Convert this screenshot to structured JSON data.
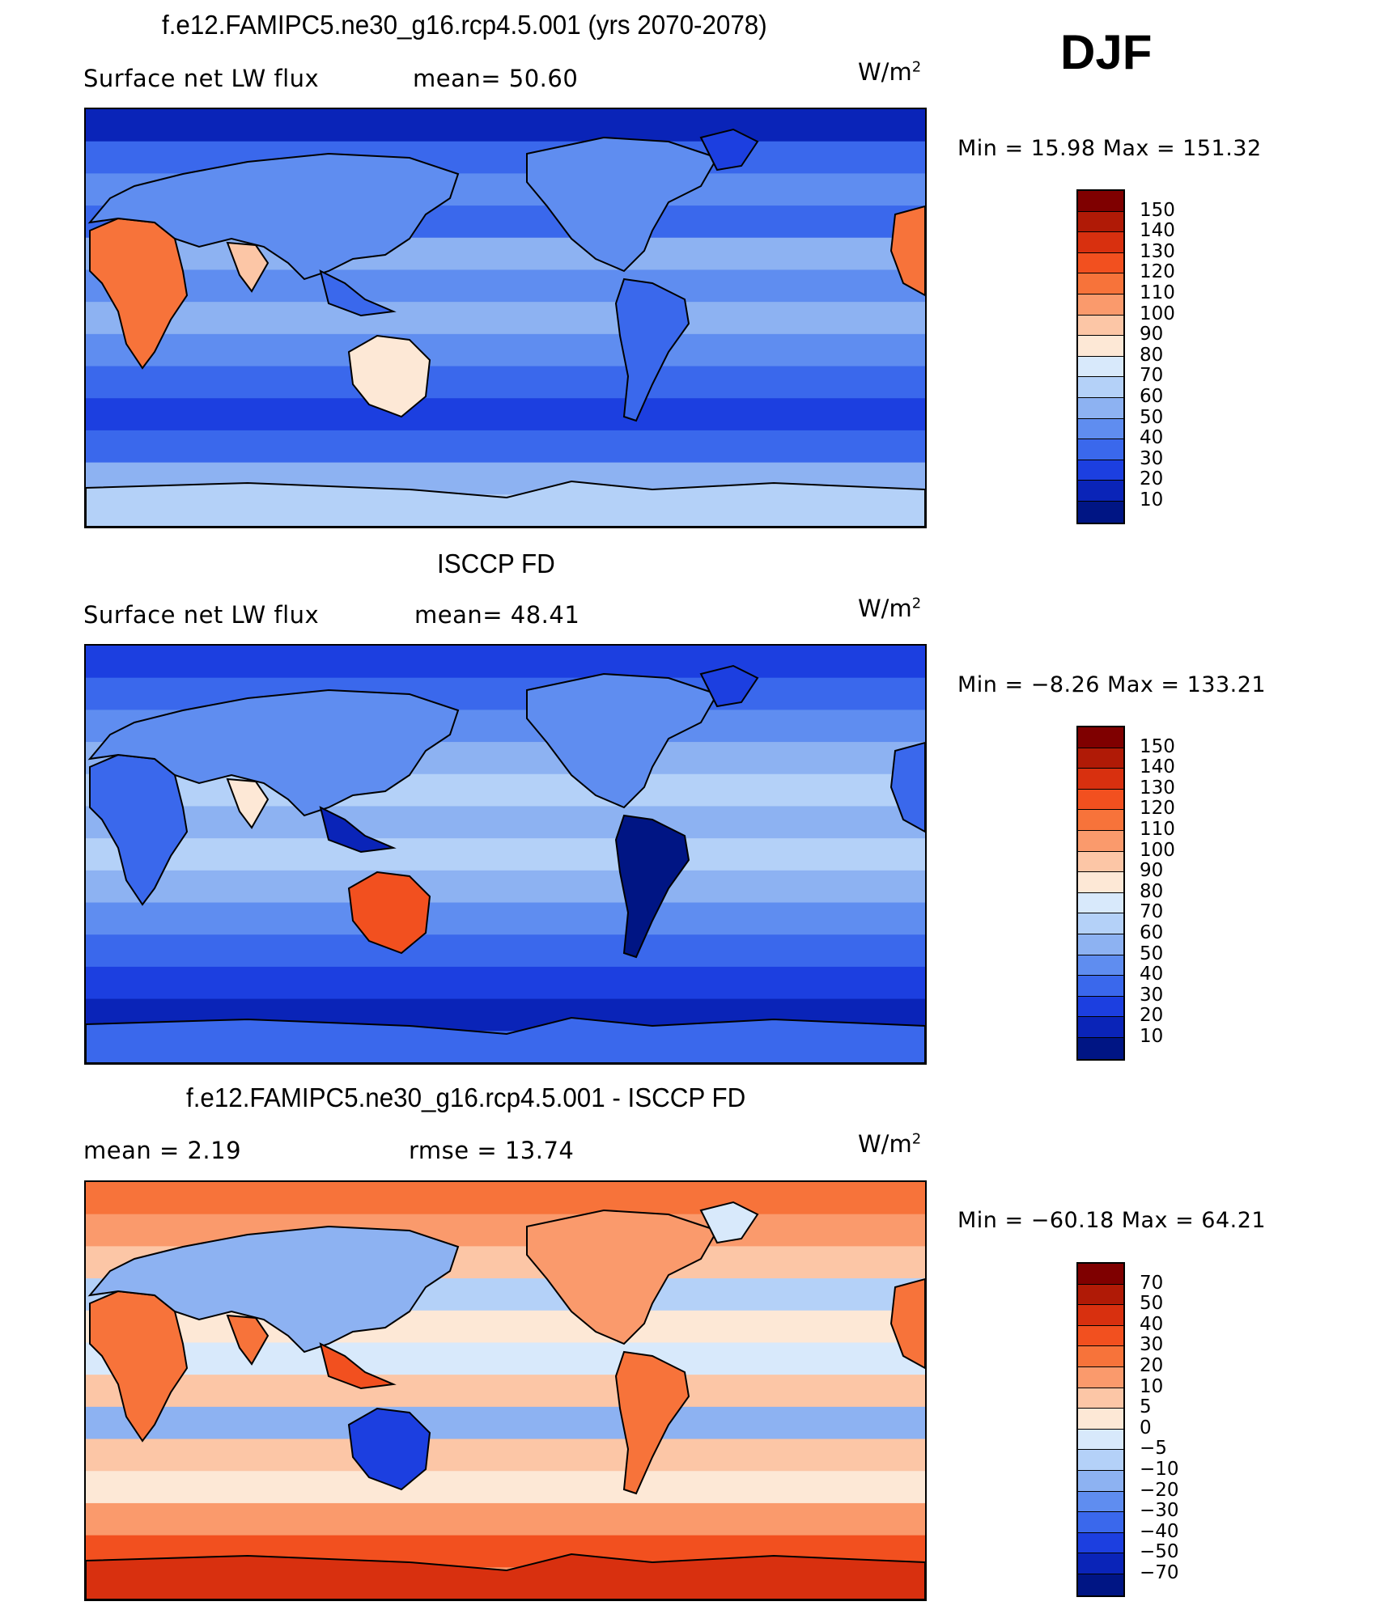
{
  "season": "DJF",
  "units": {
    "prefix": "W/m",
    "exp": "2"
  },
  "panels": [
    {
      "title": "f.e12.FAMIPC5.ne30_g16.rcp4.5.001 (yrs 2070-2078)",
      "left_text": "Surface net LW flux",
      "mid_text": "mean=  50.60",
      "min_max": "Min =   15.98 Max = 151.32",
      "colorbar": [
        "150",
        "140",
        "130",
        "120",
        "110",
        "100",
        "90",
        "80",
        "70",
        "60",
        "50",
        "40",
        "30",
        "20",
        "10"
      ],
      "map_type": "model"
    },
    {
      "title": "ISCCP FD",
      "left_text": "Surface net LW flux",
      "mid_text": "mean=  48.41",
      "min_max": "Min =  −8.26 Max = 133.21",
      "colorbar": [
        "150",
        "140",
        "130",
        "120",
        "110",
        "100",
        "90",
        "80",
        "70",
        "60",
        "50",
        "40",
        "30",
        "20",
        "10"
      ],
      "map_type": "obs"
    },
    {
      "title": "f.e12.FAMIPC5.ne30_g16.rcp4.5.001 - ISCCP FD",
      "left_text": "mean =    2.19",
      "mid_text": "rmse =   13.74",
      "min_max": "Min = −60.18 Max =   64.21",
      "colorbar": [
        "70",
        "50",
        "40",
        "30",
        "20",
        "10",
        "5",
        "0",
        "−5",
        "−10",
        "−20",
        "−30",
        "−40",
        "−50",
        "−70"
      ],
      "map_type": "diff"
    }
  ],
  "colors": {
    "scale": [
      "#7f0000",
      "#b01a06",
      "#d8300f",
      "#f2501f",
      "#f7733a",
      "#fa9a6c",
      "#fcc6a6",
      "#fde8d6",
      "#d8e9fb",
      "#b4d1f8",
      "#8db2f2",
      "#5f8df0",
      "#3a68ec",
      "#1c3fe0",
      "#0a24b8",
      "#001584"
    ],
    "outline": "#000000"
  }
}
